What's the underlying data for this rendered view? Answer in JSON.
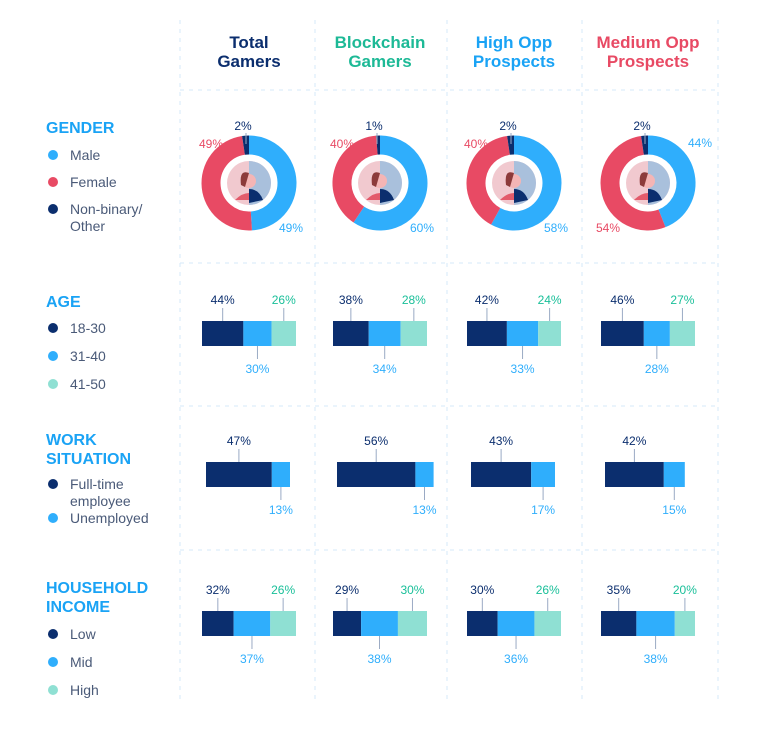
{
  "colors": {
    "navy": "#0b2e6e",
    "blue": "#2faefc",
    "red": "#e84a64",
    "teal": "#8fe0d3",
    "teal_text": "#19bf99",
    "header_green": "#1db996",
    "header_red": "#e84a64",
    "header_blue": "#1aa3f5"
  },
  "chart_data": [
    {
      "type": "pie",
      "section": "GENDER",
      "variant": "donut",
      "categories": [
        "Male",
        "Female",
        "Non-binary/ Other"
      ],
      "groups": [
        "Total Gamers",
        "Blockchain Gamers",
        "High Opp Prospects",
        "Medium Opp Prospects"
      ],
      "series": [
        {
          "group": "Total Gamers",
          "values": [
            49,
            49,
            2
          ]
        },
        {
          "group": "Blockchain Gamers",
          "values": [
            60,
            40,
            1
          ]
        },
        {
          "group": "High Opp Prospects",
          "values": [
            58,
            40,
            2
          ]
        },
        {
          "group": "Medium Opp Prospects",
          "values": [
            44,
            54,
            2
          ]
        }
      ]
    },
    {
      "type": "bar",
      "section": "AGE",
      "stacked": true,
      "categories": [
        "18-30",
        "31-40",
        "41-50"
      ],
      "series": [
        {
          "group": "Total Gamers",
          "values": [
            44,
            30,
            26
          ]
        },
        {
          "group": "Blockchain Gamers",
          "values": [
            38,
            34,
            28
          ]
        },
        {
          "group": "High Opp Prospects",
          "values": [
            42,
            33,
            24
          ]
        },
        {
          "group": "Medium Opp Prospects",
          "values": [
            46,
            28,
            27
          ]
        }
      ]
    },
    {
      "type": "bar",
      "section": "WORK SITUATION",
      "stacked": true,
      "categories": [
        "Full-time employee",
        "Unemployed"
      ],
      "series": [
        {
          "group": "Total Gamers",
          "values": [
            47,
            13
          ]
        },
        {
          "group": "Blockchain Gamers",
          "values": [
            56,
            13
          ]
        },
        {
          "group": "High Opp Prospects",
          "values": [
            43,
            17
          ]
        },
        {
          "group": "Medium Opp Prospects",
          "values": [
            42,
            15
          ]
        }
      ]
    },
    {
      "type": "bar",
      "section": "HOUSEHOLD INCOME",
      "stacked": true,
      "categories": [
        "Low",
        "Mid",
        "High"
      ],
      "series": [
        {
          "group": "Total Gamers",
          "values": [
            32,
            37,
            26
          ]
        },
        {
          "group": "Blockchain Gamers",
          "values": [
            29,
            38,
            30
          ]
        },
        {
          "group": "High Opp Prospects",
          "values": [
            30,
            36,
            26
          ]
        },
        {
          "group": "Medium Opp Prospects",
          "values": [
            35,
            38,
            20
          ]
        }
      ]
    }
  ],
  "headers": [
    [
      "Total",
      "Gamers"
    ],
    [
      "Blockchain",
      "Gamers"
    ],
    [
      "High Opp",
      "Prospects"
    ],
    [
      "Medium Opp",
      "Prospects"
    ]
  ],
  "sections": [
    {
      "title": [
        "GENDER"
      ],
      "legend": [
        [
          "Male"
        ],
        [
          "Female"
        ],
        [
          "Non-binary/",
          "Other"
        ]
      ]
    },
    {
      "title": [
        "AGE"
      ],
      "legend": [
        [
          "18-30"
        ],
        [
          "31-40"
        ],
        [
          "41-50"
        ]
      ]
    },
    {
      "title": [
        "WORK",
        "SITUATION"
      ],
      "legend": [
        [
          "Full-time",
          "employee"
        ],
        [
          "Unemployed"
        ]
      ]
    },
    {
      "title": [
        "HOUSEHOLD",
        "INCOME"
      ],
      "legend": [
        [
          "Low"
        ],
        [
          "Mid"
        ],
        [
          "High"
        ]
      ]
    }
  ]
}
